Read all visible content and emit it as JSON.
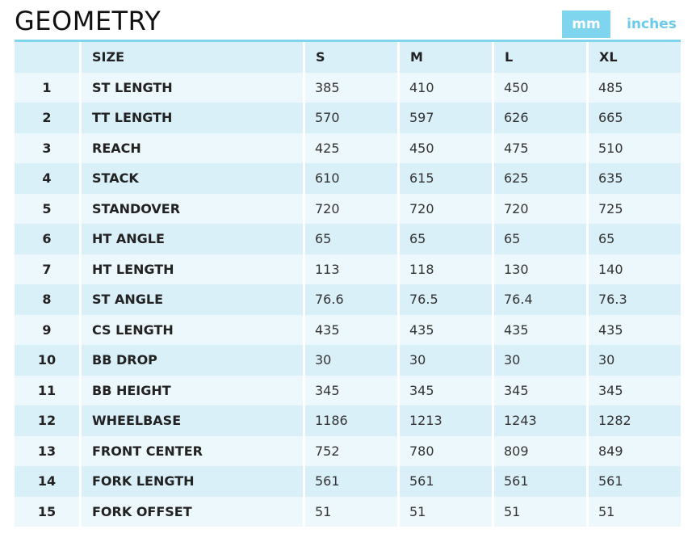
{
  "header": {
    "title": "GEOMETRY",
    "units": {
      "active": "mm",
      "mm_label": "mm",
      "inches_label": "inches"
    }
  },
  "colors": {
    "accent": "#7fd4ee",
    "row_dark": "#daf0f8",
    "row_light": "#edf8fc",
    "inactive_unit_text": "#6ccbea"
  },
  "table": {
    "columns": [
      "",
      "SIZE",
      "S",
      "M",
      "L",
      "XL"
    ],
    "rows": [
      {
        "num": "1",
        "name": "ST LENGTH",
        "values": [
          "385",
          "410",
          "450",
          "485"
        ]
      },
      {
        "num": "2",
        "name": "TT LENGTH",
        "values": [
          "570",
          "597",
          "626",
          "665"
        ]
      },
      {
        "num": "3",
        "name": "REACH",
        "values": [
          "425",
          "450",
          "475",
          "510"
        ]
      },
      {
        "num": "4",
        "name": "STACK",
        "values": [
          "610",
          "615",
          "625",
          "635"
        ]
      },
      {
        "num": "5",
        "name": "STANDOVER",
        "values": [
          "720",
          "720",
          "720",
          "725"
        ]
      },
      {
        "num": "6",
        "name": "HT ANGLE",
        "values": [
          "65",
          "65",
          "65",
          "65"
        ]
      },
      {
        "num": "7",
        "name": "HT LENGTH",
        "values": [
          "113",
          "118",
          "130",
          "140"
        ]
      },
      {
        "num": "8",
        "name": "ST ANGLE",
        "values": [
          "76.6",
          "76.5",
          "76.4",
          "76.3"
        ]
      },
      {
        "num": "9",
        "name": "CS LENGTH",
        "values": [
          "435",
          "435",
          "435",
          "435"
        ]
      },
      {
        "num": "10",
        "name": "BB DROP",
        "values": [
          "30",
          "30",
          "30",
          "30"
        ]
      },
      {
        "num": "11",
        "name": "BB HEIGHT",
        "values": [
          "345",
          "345",
          "345",
          "345"
        ]
      },
      {
        "num": "12",
        "name": "WHEELBASE",
        "values": [
          "1186",
          "1213",
          "1243",
          "1282"
        ]
      },
      {
        "num": "13",
        "name": "FRONT CENTER",
        "values": [
          "752",
          "780",
          "809",
          "849"
        ]
      },
      {
        "num": "14",
        "name": "FORK LENGTH",
        "values": [
          "561",
          "561",
          "561",
          "561"
        ]
      },
      {
        "num": "15",
        "name": "FORK OFFSET",
        "values": [
          "51",
          "51",
          "51",
          "51"
        ]
      }
    ]
  }
}
